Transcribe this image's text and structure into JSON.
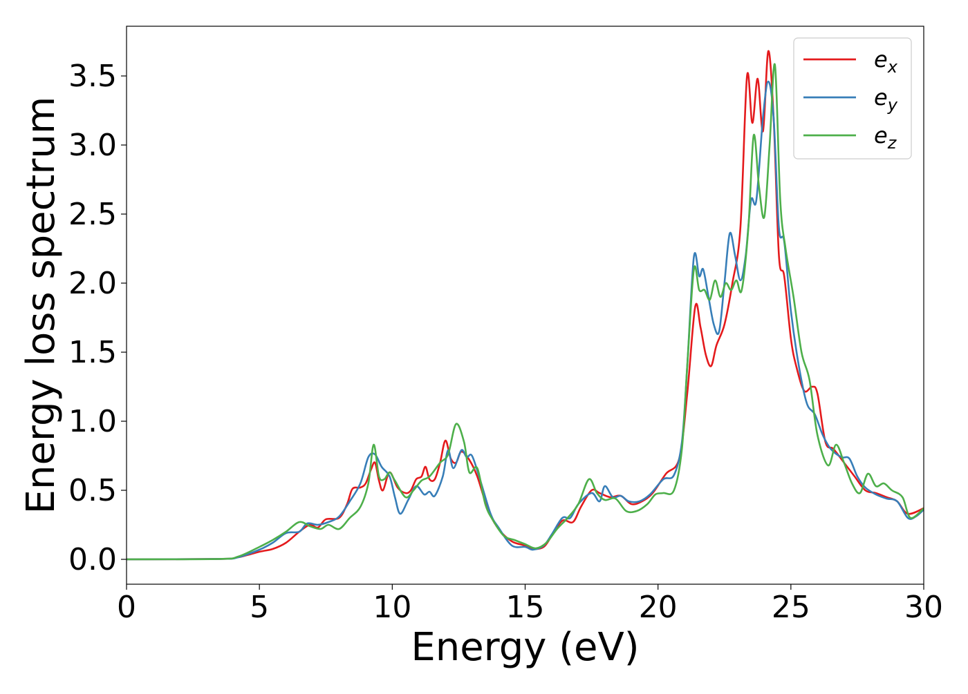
{
  "chart_data": {
    "type": "line",
    "xlabel": "Energy (eV)",
    "ylabel": "Energy loss spectrum",
    "xlim": [
      0,
      30
    ],
    "ylim": [
      -0.18,
      3.86
    ],
    "xticks": [
      0,
      5,
      10,
      15,
      20,
      25,
      30
    ],
    "xtick_labels": [
      "0",
      "5",
      "10",
      "15",
      "20",
      "25",
      "30"
    ],
    "yticks": [
      0.0,
      0.5,
      1.0,
      1.5,
      2.0,
      2.5,
      3.0,
      3.5
    ],
    "ytick_labels": [
      "0.0",
      "0.5",
      "1.0",
      "1.5",
      "2.0",
      "2.5",
      "3.0",
      "3.5"
    ],
    "grid": false,
    "legend_position": "top-right",
    "series": [
      {
        "name": "e",
        "subscript": "x",
        "color": "#e41a1c",
        "points": [
          [
            0,
            0
          ],
          [
            3.5,
            0.003
          ],
          [
            4.2,
            0.015
          ],
          [
            5,
            0.055
          ],
          [
            5.5,
            0.075
          ],
          [
            6,
            0.12
          ],
          [
            6.5,
            0.2
          ],
          [
            6.9,
            0.25
          ],
          [
            7.2,
            0.23
          ],
          [
            7.5,
            0.29
          ],
          [
            8,
            0.3
          ],
          [
            8.3,
            0.4
          ],
          [
            8.5,
            0.51
          ],
          [
            8.8,
            0.52
          ],
          [
            9.0,
            0.55
          ],
          [
            9.2,
            0.65
          ],
          [
            9.35,
            0.7
          ],
          [
            9.5,
            0.57
          ],
          [
            9.65,
            0.5
          ],
          [
            9.9,
            0.63
          ],
          [
            10.2,
            0.52
          ],
          [
            10.5,
            0.48
          ],
          [
            10.7,
            0.5
          ],
          [
            10.9,
            0.58
          ],
          [
            11.1,
            0.6
          ],
          [
            11.25,
            0.67
          ],
          [
            11.4,
            0.58
          ],
          [
            11.6,
            0.58
          ],
          [
            11.8,
            0.7
          ],
          [
            12.0,
            0.86
          ],
          [
            12.2,
            0.73
          ],
          [
            12.4,
            0.7
          ],
          [
            12.6,
            0.78
          ],
          [
            12.9,
            0.72
          ],
          [
            13.2,
            0.6
          ],
          [
            13.6,
            0.36
          ],
          [
            14.0,
            0.22
          ],
          [
            14.5,
            0.13
          ],
          [
            15.0,
            0.1
          ],
          [
            15.3,
            0.075
          ],
          [
            15.7,
            0.09
          ],
          [
            16.0,
            0.17
          ],
          [
            16.4,
            0.28
          ],
          [
            16.8,
            0.27
          ],
          [
            17.1,
            0.38
          ],
          [
            17.5,
            0.5
          ],
          [
            17.8,
            0.48
          ],
          [
            18.2,
            0.45
          ],
          [
            18.6,
            0.46
          ],
          [
            19.0,
            0.4
          ],
          [
            19.4,
            0.42
          ],
          [
            19.8,
            0.48
          ],
          [
            20.3,
            0.62
          ],
          [
            20.8,
            0.73
          ],
          [
            21.1,
            1.2
          ],
          [
            21.4,
            1.83
          ],
          [
            21.6,
            1.68
          ],
          [
            21.8,
            1.48
          ],
          [
            22.0,
            1.4
          ],
          [
            22.2,
            1.55
          ],
          [
            22.5,
            1.7
          ],
          [
            22.8,
            2.0
          ],
          [
            23.1,
            2.4
          ],
          [
            23.35,
            3.5
          ],
          [
            23.55,
            3.16
          ],
          [
            23.75,
            3.48
          ],
          [
            23.95,
            3.1
          ],
          [
            24.15,
            3.68
          ],
          [
            24.35,
            3.2
          ],
          [
            24.55,
            2.2
          ],
          [
            24.75,
            2.05
          ],
          [
            25.0,
            1.6
          ],
          [
            25.2,
            1.4
          ],
          [
            25.5,
            1.22
          ],
          [
            25.8,
            1.25
          ],
          [
            26.0,
            1.2
          ],
          [
            26.3,
            0.85
          ],
          [
            26.6,
            0.8
          ],
          [
            27.0,
            0.7
          ],
          [
            27.4,
            0.6
          ],
          [
            27.8,
            0.5
          ],
          [
            28.2,
            0.48
          ],
          [
            28.6,
            0.45
          ],
          [
            29.0,
            0.42
          ],
          [
            29.4,
            0.33
          ],
          [
            30.0,
            0.37
          ]
        ]
      },
      {
        "name": "e",
        "subscript": "y",
        "color": "#377eb8",
        "points": [
          [
            0,
            0
          ],
          [
            3.5,
            0.003
          ],
          [
            4.2,
            0.015
          ],
          [
            5,
            0.07
          ],
          [
            5.5,
            0.12
          ],
          [
            6,
            0.19
          ],
          [
            6.5,
            0.2
          ],
          [
            6.8,
            0.26
          ],
          [
            7.2,
            0.25
          ],
          [
            7.6,
            0.27
          ],
          [
            8,
            0.31
          ],
          [
            8.4,
            0.42
          ],
          [
            8.8,
            0.55
          ],
          [
            9.1,
            0.74
          ],
          [
            9.35,
            0.76
          ],
          [
            9.6,
            0.67
          ],
          [
            9.9,
            0.6
          ],
          [
            10.1,
            0.45
          ],
          [
            10.3,
            0.33
          ],
          [
            10.6,
            0.43
          ],
          [
            10.9,
            0.53
          ],
          [
            11.2,
            0.47
          ],
          [
            11.4,
            0.49
          ],
          [
            11.6,
            0.46
          ],
          [
            11.9,
            0.6
          ],
          [
            12.1,
            0.79
          ],
          [
            12.3,
            0.66
          ],
          [
            12.6,
            0.79
          ],
          [
            12.8,
            0.74
          ],
          [
            13.0,
            0.75
          ],
          [
            13.3,
            0.58
          ],
          [
            13.7,
            0.33
          ],
          [
            14.0,
            0.23
          ],
          [
            14.5,
            0.1
          ],
          [
            15.0,
            0.09
          ],
          [
            15.3,
            0.07
          ],
          [
            15.7,
            0.1
          ],
          [
            16.0,
            0.18
          ],
          [
            16.4,
            0.3
          ],
          [
            16.7,
            0.3
          ],
          [
            17.0,
            0.4
          ],
          [
            17.5,
            0.48
          ],
          [
            17.8,
            0.42
          ],
          [
            18.0,
            0.53
          ],
          [
            18.3,
            0.45
          ],
          [
            18.6,
            0.46
          ],
          [
            18.9,
            0.42
          ],
          [
            19.3,
            0.42
          ],
          [
            19.7,
            0.47
          ],
          [
            20.2,
            0.58
          ],
          [
            20.6,
            0.61
          ],
          [
            20.9,
            0.85
          ],
          [
            21.1,
            1.4
          ],
          [
            21.35,
            2.19
          ],
          [
            21.55,
            2.05
          ],
          [
            21.7,
            2.1
          ],
          [
            21.9,
            1.9
          ],
          [
            22.1,
            1.7
          ],
          [
            22.3,
            1.65
          ],
          [
            22.5,
            2.0
          ],
          [
            22.7,
            2.36
          ],
          [
            22.9,
            2.2
          ],
          [
            23.1,
            2.02
          ],
          [
            23.3,
            2.2
          ],
          [
            23.5,
            2.6
          ],
          [
            23.7,
            2.6
          ],
          [
            23.95,
            3.2
          ],
          [
            24.15,
            3.46
          ],
          [
            24.35,
            3.2
          ],
          [
            24.55,
            2.4
          ],
          [
            24.75,
            2.3
          ],
          [
            25.0,
            1.8
          ],
          [
            25.3,
            1.4
          ],
          [
            25.6,
            1.13
          ],
          [
            25.9,
            1.05
          ],
          [
            26.2,
            0.9
          ],
          [
            26.5,
            0.8
          ],
          [
            26.9,
            0.74
          ],
          [
            27.2,
            0.73
          ],
          [
            27.5,
            0.6
          ],
          [
            27.8,
            0.52
          ],
          [
            28.2,
            0.47
          ],
          [
            28.6,
            0.44
          ],
          [
            29.0,
            0.42
          ],
          [
            29.4,
            0.3
          ],
          [
            29.7,
            0.31
          ],
          [
            30.0,
            0.36
          ]
        ]
      },
      {
        "name": "e",
        "subscript": "z",
        "color": "#4daf4a",
        "points": [
          [
            0,
            0
          ],
          [
            3.5,
            0.003
          ],
          [
            4.2,
            0.02
          ],
          [
            5,
            0.09
          ],
          [
            5.5,
            0.14
          ],
          [
            6,
            0.2
          ],
          [
            6.5,
            0.27
          ],
          [
            6.9,
            0.24
          ],
          [
            7.3,
            0.22
          ],
          [
            7.6,
            0.25
          ],
          [
            8,
            0.22
          ],
          [
            8.4,
            0.3
          ],
          [
            8.8,
            0.38
          ],
          [
            9.1,
            0.55
          ],
          [
            9.3,
            0.83
          ],
          [
            9.5,
            0.6
          ],
          [
            9.7,
            0.58
          ],
          [
            9.9,
            0.63
          ],
          [
            10.1,
            0.57
          ],
          [
            10.5,
            0.45
          ],
          [
            10.8,
            0.5
          ],
          [
            11.1,
            0.57
          ],
          [
            11.4,
            0.6
          ],
          [
            11.8,
            0.7
          ],
          [
            12.1,
            0.76
          ],
          [
            12.4,
            0.98
          ],
          [
            12.7,
            0.85
          ],
          [
            12.9,
            0.63
          ],
          [
            13.2,
            0.66
          ],
          [
            13.5,
            0.4
          ],
          [
            13.8,
            0.28
          ],
          [
            14.2,
            0.17
          ],
          [
            14.6,
            0.14
          ],
          [
            15.0,
            0.11
          ],
          [
            15.4,
            0.08
          ],
          [
            15.8,
            0.12
          ],
          [
            16.2,
            0.22
          ],
          [
            16.6,
            0.3
          ],
          [
            17.0,
            0.4
          ],
          [
            17.4,
            0.58
          ],
          [
            17.7,
            0.48
          ],
          [
            18.0,
            0.43
          ],
          [
            18.4,
            0.44
          ],
          [
            18.8,
            0.35
          ],
          [
            19.2,
            0.35
          ],
          [
            19.6,
            0.4
          ],
          [
            19.9,
            0.47
          ],
          [
            20.2,
            0.48
          ],
          [
            20.6,
            0.5
          ],
          [
            20.9,
            0.8
          ],
          [
            21.1,
            1.4
          ],
          [
            21.35,
            2.1
          ],
          [
            21.55,
            1.95
          ],
          [
            21.75,
            1.95
          ],
          [
            21.95,
            1.88
          ],
          [
            22.15,
            2.02
          ],
          [
            22.35,
            1.9
          ],
          [
            22.55,
            2.0
          ],
          [
            22.75,
            1.95
          ],
          [
            22.95,
            2.02
          ],
          [
            23.15,
            1.95
          ],
          [
            23.4,
            2.4
          ],
          [
            23.6,
            3.07
          ],
          [
            23.8,
            2.7
          ],
          [
            24.0,
            2.48
          ],
          [
            24.2,
            3.0
          ],
          [
            24.4,
            3.58
          ],
          [
            24.6,
            2.6
          ],
          [
            24.8,
            2.25
          ],
          [
            25.1,
            1.9
          ],
          [
            25.4,
            1.5
          ],
          [
            25.7,
            1.3
          ],
          [
            26.0,
            0.9
          ],
          [
            26.4,
            0.68
          ],
          [
            26.7,
            0.83
          ],
          [
            27.0,
            0.7
          ],
          [
            27.3,
            0.55
          ],
          [
            27.6,
            0.48
          ],
          [
            27.9,
            0.62
          ],
          [
            28.2,
            0.53
          ],
          [
            28.5,
            0.55
          ],
          [
            28.8,
            0.5
          ],
          [
            29.2,
            0.45
          ],
          [
            29.5,
            0.3
          ],
          [
            30.0,
            0.37
          ]
        ]
      }
    ]
  }
}
